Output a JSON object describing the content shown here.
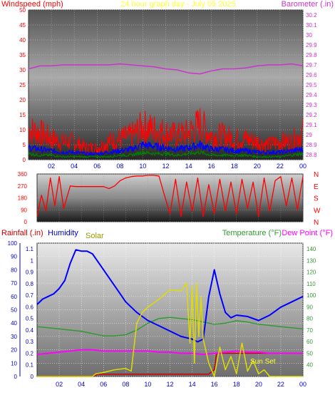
{
  "colors": {
    "wind": "#ff0000",
    "wind_avg": "#0000ff",
    "wind_low": "#008000",
    "barometer": "#cc33cc",
    "direction": "#ff0000",
    "rain": "#cc0000",
    "humidity": "#0000ff",
    "solar": "#dddd00",
    "temperature": "#339933",
    "dew_point": "#ff00ff",
    "title": "#ffff33",
    "axis": "#0000cc"
  },
  "chart_data": [
    {
      "type": "line",
      "id": "wind_barometer",
      "title": "24 hour graph day - July 05 2025",
      "y_left_label": "Windspeed (mph)",
      "y_right_label": "Barometer (.in)",
      "x": [
        0,
        1,
        2,
        3,
        4,
        5,
        6,
        7,
        8,
        9,
        10,
        11,
        12,
        13,
        14,
        15,
        16,
        17,
        18,
        19,
        20,
        21,
        22,
        23,
        24
      ],
      "x_ticks": [
        "02",
        "04",
        "06",
        "08",
        "10",
        "12",
        "14",
        "16",
        "18",
        "20",
        "22",
        "00"
      ],
      "y_left_ticks": [
        0,
        5,
        10,
        15,
        20,
        25,
        30,
        35,
        40,
        45,
        50
      ],
      "y_left_range": [
        0,
        50
      ],
      "y_right_ticks": [
        "28.8",
        "28.9",
        "29",
        "29.1",
        "29.2",
        "29.3",
        "29.4",
        "29.5",
        "29.6",
        "29.7",
        "29.8",
        "29.9",
        "30",
        "30.1",
        "30.2"
      ],
      "y_right_range": [
        28.75,
        30.25
      ],
      "grid": true,
      "series": [
        {
          "key": "wind_gust",
          "axis": "left",
          "values": [
            10,
            9,
            7,
            6,
            6,
            4,
            4,
            6,
            7,
            8,
            11,
            10,
            9,
            8,
            9,
            12,
            8,
            8,
            7,
            7,
            6,
            5,
            6,
            6,
            9
          ]
        },
        {
          "key": "wind_avg",
          "axis": "left",
          "values": [
            4,
            3.5,
            3,
            2.5,
            2.5,
            2,
            2,
            2.5,
            3,
            3.5,
            5,
            4.5,
            4,
            3.5,
            4,
            5,
            3.5,
            3.5,
            3,
            3,
            2.5,
            2.5,
            2.5,
            3,
            3.5
          ]
        },
        {
          "key": "wind_low",
          "axis": "left",
          "values": [
            2,
            1.5,
            1.5,
            1,
            1,
            1,
            1,
            1,
            1.5,
            1.5,
            2.5,
            2,
            2,
            1.5,
            2,
            2.5,
            1.5,
            1.5,
            1.5,
            1.5,
            1,
            1,
            1,
            1.5,
            2
          ]
        },
        {
          "key": "barometer",
          "axis": "right",
          "values": [
            29.66,
            29.69,
            29.69,
            29.7,
            29.7,
            29.7,
            29.7,
            29.7,
            29.71,
            29.7,
            29.69,
            29.68,
            29.66,
            29.65,
            29.62,
            29.61,
            29.64,
            29.66,
            29.66,
            29.67,
            29.69,
            29.7,
            29.7,
            29.71,
            29.69
          ]
        }
      ]
    },
    {
      "type": "line",
      "id": "wind_direction",
      "y_ticks": [
        0,
        90,
        180,
        270,
        360
      ],
      "y_range": [
        0,
        360
      ],
      "direction_labels": [
        "N",
        "W",
        "S",
        "E",
        "N"
      ],
      "series": [
        {
          "key": "direction",
          "x": [
            0,
            0.4,
            0.8,
            1.2,
            1.6,
            2,
            2.4,
            3,
            3.5,
            4,
            4.5,
            5,
            5.5,
            6,
            6.5,
            7,
            7.5,
            8,
            8.5,
            9,
            9.5,
            10,
            10.5,
            11,
            11.5,
            12,
            12.5,
            13,
            13.5,
            14,
            14.5,
            15,
            15.5,
            16,
            16.5,
            17,
            17.5,
            18,
            18.5,
            19,
            19.5,
            20,
            20.5,
            21,
            21.5,
            22,
            22.5,
            23,
            23.5,
            24
          ],
          "values": [
            40,
            200,
            80,
            330,
            120,
            340,
            100,
            270,
            265,
            265,
            265,
            265,
            265,
            265,
            250,
            270,
            310,
            330,
            340,
            345,
            345,
            350,
            350,
            345,
            200,
            60,
            320,
            40,
            300,
            80,
            330,
            40,
            280,
            60,
            320,
            80,
            300,
            60,
            320,
            100,
            300,
            40,
            330,
            80,
            310,
            340,
            120,
            330,
            90,
            340
          ]
        }
      ]
    },
    {
      "type": "line",
      "id": "rain_humidity_solar_temp",
      "y_left_label": "Rainfall (.in)",
      "y_humidity_label": "Humidity",
      "y_solar_label": "Solar",
      "y_right_label": "Temperature (°F)",
      "y_dew_label": "Dew Point (°F)",
      "annotation": "Sun Set",
      "x_ticks": [
        "02",
        "04",
        "06",
        "08",
        "10",
        "12",
        "14",
        "16",
        "18",
        "20",
        "22",
        "00"
      ],
      "y_humidity_ticks": [
        0,
        10,
        20,
        30,
        40,
        50,
        60,
        70,
        80,
        90,
        100
      ],
      "y_humidity_range": [
        0,
        100
      ],
      "y_rain_ticks": [
        "0",
        "0.1",
        "0.2",
        "0.3",
        "0.4",
        "0.5",
        "0.6",
        "0.7",
        "0.8",
        "0.9",
        "1",
        "1.1"
      ],
      "y_rain_range": [
        0,
        1.15
      ],
      "y_right_ticks": [
        40,
        50,
        60,
        70,
        80,
        90,
        100,
        110,
        120,
        130,
        140
      ],
      "y_right_range": [
        30,
        145
      ],
      "series": [
        {
          "key": "humidity",
          "x": [
            0,
            0.5,
            1,
            1.5,
            2,
            2.5,
            3,
            3.5,
            4,
            4.5,
            5,
            5.5,
            6,
            6.5,
            7,
            7.5,
            8,
            9,
            10,
            11,
            12,
            13,
            14,
            14.5,
            15,
            15.5,
            16,
            16.5,
            17,
            17.5,
            18,
            19,
            20,
            21,
            22,
            23,
            24
          ],
          "values": [
            54,
            58,
            60,
            62,
            66,
            72,
            85,
            95,
            94,
            94,
            92,
            86,
            80,
            74,
            68,
            62,
            56,
            48,
            42,
            38,
            34,
            30,
            28,
            26,
            28,
            60,
            80,
            62,
            48,
            44,
            46,
            45,
            42,
            46,
            52,
            56,
            60
          ]
        },
        {
          "key": "temperature",
          "x": [
            0,
            1,
            2,
            3,
            4,
            5,
            6,
            7,
            8,
            9,
            10,
            11,
            12,
            13,
            14,
            15,
            16,
            17,
            18,
            19,
            20,
            21,
            22,
            23,
            24
          ],
          "values": [
            73,
            72,
            71,
            70,
            69,
            67,
            65,
            65,
            66,
            70,
            76,
            80,
            81,
            80,
            79,
            77,
            75,
            76,
            78,
            77,
            75,
            74,
            73,
            72,
            71
          ]
        },
        {
          "key": "dew_point",
          "x": [
            0,
            1,
            2,
            3,
            4,
            5,
            6,
            7,
            8,
            9,
            10,
            11,
            12,
            13,
            14,
            15,
            16,
            17,
            18,
            19,
            20,
            21,
            22,
            23,
            24
          ],
          "values": [
            49,
            50,
            51,
            52,
            53,
            53,
            52,
            52,
            52,
            52,
            52,
            51,
            51,
            50,
            50,
            49,
            50,
            51,
            52,
            51,
            51,
            50,
            50,
            50,
            50
          ]
        },
        {
          "key": "solar",
          "axis": "humidity",
          "x": [
            0,
            5,
            5.3,
            6,
            7,
            8,
            8.5,
            9,
            9.5,
            10,
            11,
            12,
            13,
            13.5,
            13.8,
            14,
            14.2,
            14.4,
            14.6,
            14.8,
            15,
            15.5,
            16,
            16.5,
            17,
            17.5,
            18,
            18.5,
            19,
            19.5,
            20,
            20.5,
            21,
            24
          ],
          "values": [
            0,
            0,
            2,
            3,
            5,
            6,
            4,
            40,
            48,
            52,
            58,
            65,
            64,
            70,
            25,
            68,
            10,
            70,
            30,
            60,
            28,
            10,
            0,
            22,
            5,
            15,
            2,
            25,
            4,
            12,
            2,
            5,
            0,
            0
          ]
        },
        {
          "key": "rain",
          "axis": "rain",
          "x": [
            0,
            4,
            5,
            5.5,
            15.5,
            16,
            16.2,
            24
          ],
          "values": [
            0,
            0,
            0,
            0.02,
            0.02,
            0.06,
            0.2,
            0.2
          ]
        }
      ]
    }
  ]
}
